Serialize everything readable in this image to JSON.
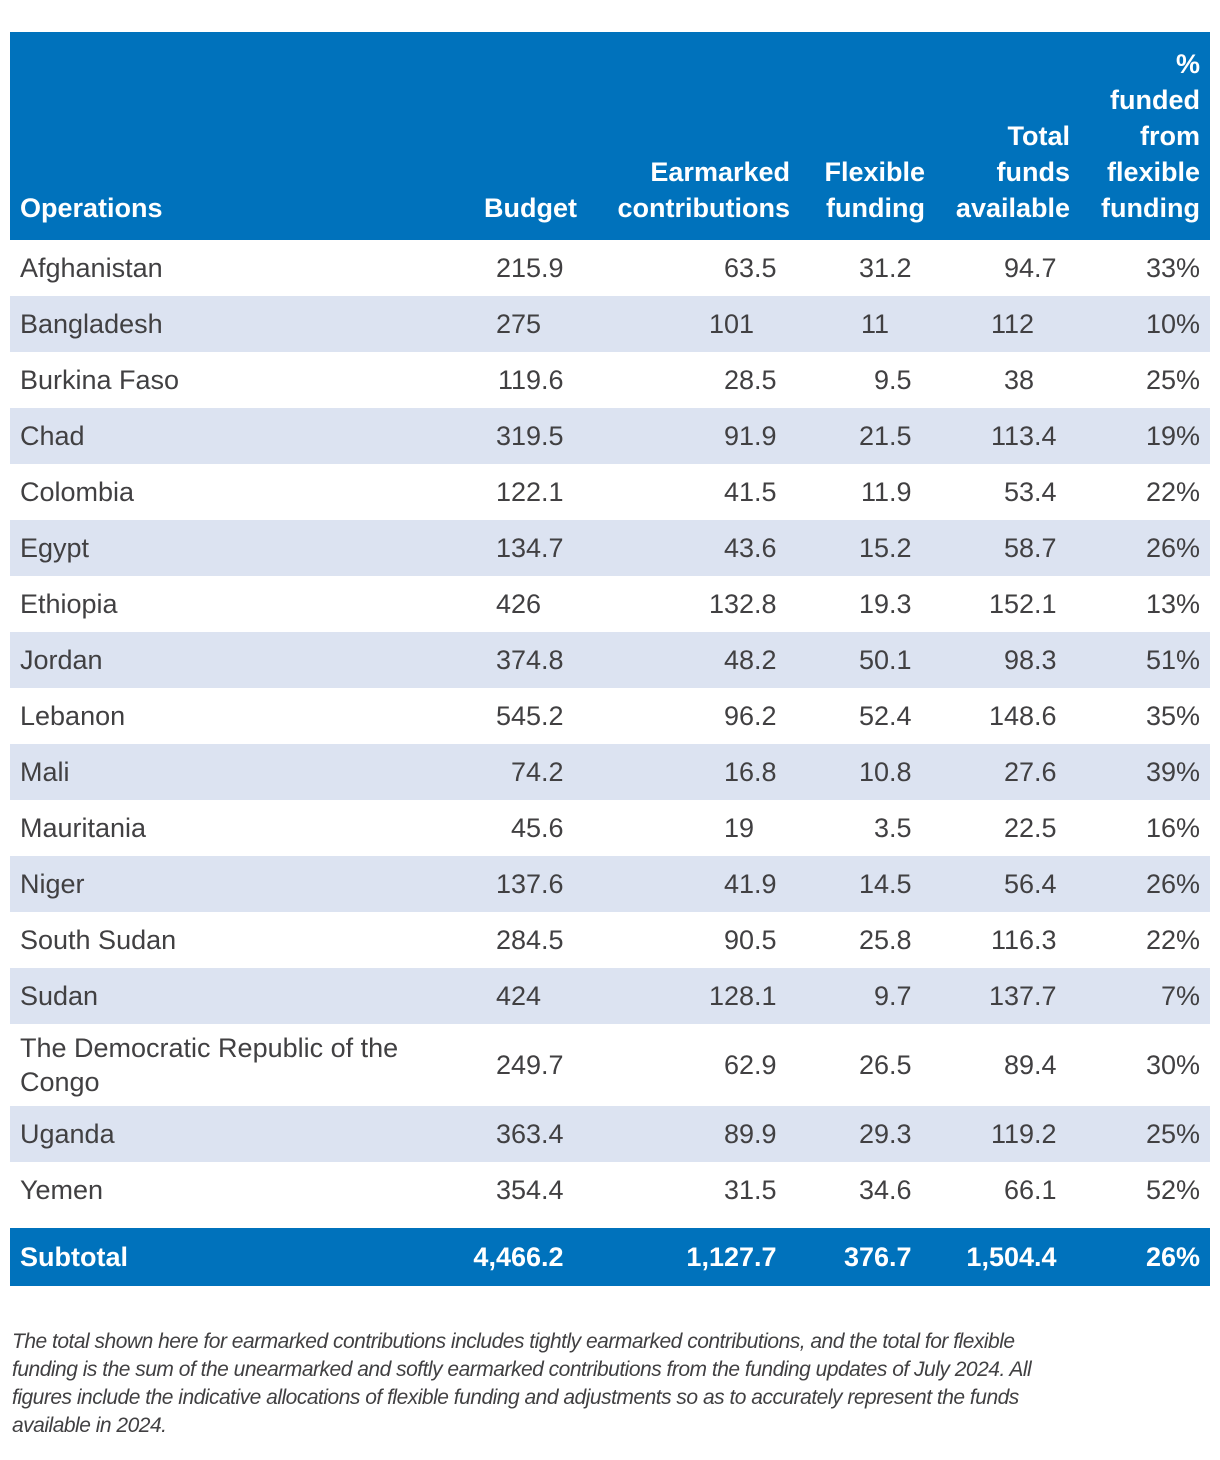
{
  "colors": {
    "header_bg": "#0072BC",
    "subtotal_bg": "#0072BC",
    "row_alt": "#DCE3F1",
    "text": "#414042",
    "header_text": "#FFFFFF"
  },
  "table": {
    "columns": [
      "Operations",
      "Budget",
      "Earmarked\ncontributions",
      "Flexible\nfunding",
      "Total\nfunds\navailable",
      "%\nfunded\nfrom\nflexible\nfunding"
    ],
    "rows": [
      [
        "Afghanistan",
        "215.9",
        "63.5",
        "31.2",
        "94.7",
        "33%"
      ],
      [
        "Bangladesh",
        "275",
        "101",
        "11",
        "112",
        "10%"
      ],
      [
        "Burkina Faso",
        "119.6",
        "28.5",
        "9.5",
        "38",
        "25%"
      ],
      [
        "Chad",
        "319.5",
        "91.9",
        "21.5",
        "113.4",
        "19%"
      ],
      [
        "Colombia",
        "122.1",
        "41.5",
        "11.9",
        "53.4",
        "22%"
      ],
      [
        "Egypt",
        "134.7",
        "43.6",
        "15.2",
        "58.7",
        "26%"
      ],
      [
        "Ethiopia",
        "426",
        "132.8",
        "19.3",
        "152.1",
        "13%"
      ],
      [
        "Jordan",
        "374.8",
        "48.2",
        "50.1",
        "98.3",
        "51%"
      ],
      [
        "Lebanon",
        "545.2",
        "96.2",
        "52.4",
        "148.6",
        "35%"
      ],
      [
        "Mali",
        "74.2",
        "16.8",
        "10.8",
        "27.6",
        "39%"
      ],
      [
        "Mauritania",
        "45.6",
        "19",
        "3.5",
        "22.5",
        "16%"
      ],
      [
        "Niger",
        "137.6",
        "41.9",
        "14.5",
        "56.4",
        "26%"
      ],
      [
        "South Sudan",
        "284.5",
        "90.5",
        "25.8",
        "116.3",
        "22%"
      ],
      [
        "Sudan",
        "424",
        "128.1",
        "9.7",
        "137.7",
        "7%"
      ],
      [
        "The Democratic Republic of the Congo",
        "249.7",
        "62.9",
        "26.5",
        "89.4",
        "30%"
      ],
      [
        "Uganda",
        "363.4",
        "89.9",
        "29.3",
        "119.2",
        "25%"
      ],
      [
        "Yemen",
        "354.4",
        "31.5",
        "34.6",
        "66.1",
        "52%"
      ]
    ],
    "subtotal": [
      "Subtotal",
      "4,466.2",
      "1,127.7",
      "376.7",
      "1,504.4",
      "26%"
    ]
  },
  "footnote_lines": [
    "The total shown here for earmarked contributions includes tightly earmarked contributions, and the total for flexible",
    "funding is the sum of the unearmarked and softly earmarked contributions from the funding updates of July 2024. All",
    "figures include the indicative allocations of flexible funding and adjustments so as to accurately represent the funds",
    "available in 2024."
  ]
}
